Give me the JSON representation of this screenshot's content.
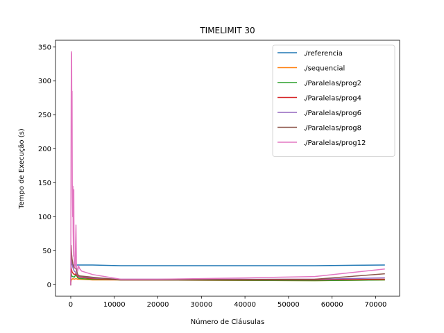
{
  "chart_data": {
    "type": "line",
    "title": "TIMELIMIT 30",
    "xlabel": "Número de Cláusulas",
    "ylabel": "Tempo de Execução (s)",
    "xlim": [
      -3500,
      75500
    ],
    "ylim": [
      -17,
      360
    ],
    "xticks": [
      0,
      10000,
      20000,
      30000,
      40000,
      50000,
      60000,
      70000
    ],
    "yticks": [
      0,
      50,
      100,
      150,
      200,
      250,
      300,
      350
    ],
    "grid": false,
    "legend_position": "top-right",
    "series": [
      {
        "name": "./referencia",
        "color": "#1f77b4",
        "x": [
          0,
          100,
          200,
          300,
          500,
          800,
          1200,
          1600,
          2000,
          5000,
          11500,
          20000,
          40000,
          56000,
          72000
        ],
        "y": [
          0,
          30,
          30,
          30,
          29,
          29,
          29,
          29,
          29,
          29,
          28,
          28,
          28,
          28,
          29
        ]
      },
      {
        "name": "./sequencial",
        "color": "#ff7f0e",
        "x": [
          0,
          100,
          200,
          300,
          500,
          800,
          1200,
          1600,
          2000,
          5000,
          11500,
          56000,
          72000
        ],
        "y": [
          0,
          6,
          8,
          8,
          9,
          8,
          9,
          8,
          8,
          7,
          7,
          6,
          7
        ]
      },
      {
        "name": "./Paralelas/prog2",
        "color": "#2ca02c",
        "x": [
          0,
          100,
          200,
          300,
          500,
          800,
          1200,
          1600,
          2000,
          5000,
          11500,
          56000,
          72000
        ],
        "y": [
          0,
          18,
          14,
          12,
          12,
          11,
          15,
          10,
          9,
          8,
          7,
          6,
          7
        ]
      },
      {
        "name": "./Paralelas/prog4",
        "color": "#d62728",
        "x": [
          0,
          100,
          200,
          300,
          500,
          800,
          1200,
          1600,
          2000,
          5000,
          11500,
          56000,
          72000
        ],
        "y": [
          0,
          25,
          22,
          19,
          17,
          15,
          16,
          12,
          11,
          9,
          7,
          7,
          8
        ]
      },
      {
        "name": "./Paralelas/prog6",
        "color": "#9467bd",
        "x": [
          0,
          100,
          200,
          300,
          500,
          800,
          1200,
          1600,
          2000,
          5000,
          11500,
          56000,
          72000
        ],
        "y": [
          0,
          40,
          35,
          32,
          25,
          20,
          18,
          14,
          12,
          10,
          8,
          8,
          10
        ]
      },
      {
        "name": "./Paralelas/prog8",
        "color": "#8c564b",
        "x": [
          0,
          100,
          200,
          300,
          500,
          800,
          1200,
          1600,
          2000,
          5000,
          11500,
          56000,
          72000
        ],
        "y": [
          0,
          58,
          45,
          38,
          30,
          25,
          24,
          15,
          13,
          11,
          7,
          8,
          16
        ]
      },
      {
        "name": "./Paralelas/prog12",
        "color": "#e377c2",
        "x": [
          0,
          100,
          150,
          200,
          250,
          300,
          350,
          400,
          450,
          500,
          550,
          600,
          650,
          700,
          750,
          800,
          900,
          1000,
          1100,
          1200,
          1300,
          1400,
          1500,
          1600,
          1800,
          2000,
          2500,
          5000,
          11500,
          20000,
          40000,
          56000,
          72000
        ],
        "y": [
          0,
          270,
          343,
          340,
          240,
          285,
          150,
          120,
          100,
          145,
          80,
          60,
          42,
          140,
          50,
          32,
          28,
          25,
          60,
          88,
          30,
          25,
          22,
          20,
          28,
          24,
          20,
          15,
          8,
          8,
          10,
          12,
          23
        ]
      }
    ]
  }
}
